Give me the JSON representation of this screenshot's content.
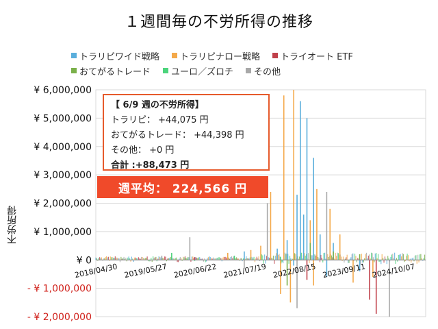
{
  "title": "１週間毎の不労所得の推移",
  "legend": [
    {
      "label": "トラリピワイド戦略",
      "color": "#5aaedc"
    },
    {
      "label": "トラリピナロー戦略",
      "color": "#f4a94a"
    },
    {
      "label": "トライオート ETF",
      "color": "#c0404a"
    },
    {
      "label": "おてがるトレード",
      "color": "#7ab04a"
    },
    {
      "label": "ユーロ／ズロチ",
      "color": "#4cd47c"
    },
    {
      "label": "その他",
      "color": "#a8a8a8"
    }
  ],
  "info": {
    "heading": "【 6/9 週の不労所得】",
    "line1": "トラリピ： +44,075 円",
    "line2": "おてがるトレード： +44,398 円",
    "line3": "その他： +0 円",
    "total": "合計 :+88,473 円"
  },
  "average": "週平均： 224,566 円",
  "chart_data": {
    "type": "bar",
    "ylabel": "不労所得",
    "ylim": [
      -2000000,
      6000000
    ],
    "y_ticks": [
      {
        "value": 6000000,
        "label": "¥ 6,000,000"
      },
      {
        "value": 5000000,
        "label": "¥ 5,000,000"
      },
      {
        "value": 4000000,
        "label": "¥ 4,000,000"
      },
      {
        "value": 3000000,
        "label": "¥ 3,000,000"
      },
      {
        "value": 2000000,
        "label": "¥ 2,000,000"
      },
      {
        "value": 1000000,
        "label": "¥ 1,000,000"
      },
      {
        "value": 0,
        "label": "¥ 0"
      },
      {
        "value": -1000000,
        "label": "- ¥ 1,000,000"
      },
      {
        "value": -2000000,
        "label": "- ¥ 2,000,000"
      }
    ],
    "x_tick_labels": [
      "2018/04/30",
      "2019/05/27",
      "2020/06/22",
      "2021/07/19",
      "2022/08/15",
      "2023/09/11",
      "2024/10/07"
    ],
    "series": [
      {
        "name": "トラリピワイド戦略",
        "color": "#5aaedc",
        "points": [
          [
            0.62,
            5600000
          ],
          [
            0.64,
            5000000
          ],
          [
            0.66,
            3600000
          ],
          [
            0.61,
            2300000
          ],
          [
            0.63,
            1600000
          ],
          [
            0.68,
            900000
          ],
          [
            0.58,
            700000
          ],
          [
            0.55,
            400000
          ],
          [
            0.45,
            300000
          ],
          [
            0.72,
            600000
          ],
          [
            0.7,
            -600000
          ],
          [
            0.8,
            -400000
          ],
          [
            0.6,
            -200000
          ]
        ]
      },
      {
        "name": "トラリピナロー戦略",
        "color": "#f4a94a",
        "points": [
          [
            0.6,
            6000000
          ],
          [
            0.57,
            5800000
          ],
          [
            0.53,
            2400000
          ],
          [
            0.65,
            1400000
          ],
          [
            0.67,
            2500000
          ],
          [
            0.71,
            1800000
          ],
          [
            0.74,
            900000
          ],
          [
            0.59,
            -1500000
          ],
          [
            0.56,
            -1200000
          ],
          [
            0.66,
            -900000
          ],
          [
            0.78,
            -800000
          ],
          [
            0.84,
            -600000
          ],
          [
            0.5,
            500000
          ],
          [
            0.47,
            350000
          ],
          [
            0.4,
            250000
          ]
        ]
      },
      {
        "name": "トライオート ETF",
        "color": "#c0404a",
        "points": [
          [
            0.83,
            -1400000
          ],
          [
            0.85,
            -1900000
          ],
          [
            0.64,
            -700000
          ],
          [
            0.3,
            100000
          ]
        ]
      },
      {
        "name": "おてがるトレード",
        "color": "#7ab04a",
        "points": [
          [
            0.58,
            -900000
          ],
          [
            0.65,
            600000
          ],
          [
            0.72,
            300000
          ],
          [
            0.8,
            200000
          ]
        ]
      },
      {
        "name": "ユーロ／ズロチ",
        "color": "#4cd47c",
        "points": [
          [
            0.23,
            250000
          ],
          [
            0.42,
            150000
          ],
          [
            0.56,
            100000
          ]
        ]
      },
      {
        "name": "その他",
        "color": "#a8a8a8",
        "points": [
          [
            0.285,
            800000
          ],
          [
            0.45,
            -300000
          ],
          [
            0.52,
            2000000
          ],
          [
            0.61,
            -1700000
          ],
          [
            0.7,
            2400000
          ],
          [
            0.89,
            -2000000
          ],
          [
            0.2,
            150000
          ]
        ]
      }
    ]
  }
}
